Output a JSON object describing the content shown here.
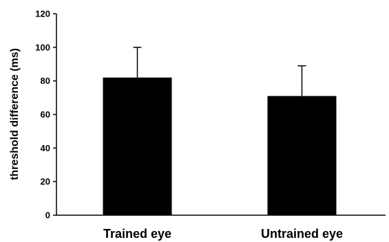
{
  "chart_data": {
    "type": "bar",
    "categories": [
      "Trained eye",
      "Untrained eye"
    ],
    "values": [
      82,
      71
    ],
    "errors": [
      18,
      18
    ],
    "title": "",
    "xlabel": "",
    "ylabel": "threshold difference (ms)",
    "ylim": [
      0,
      120
    ],
    "yticks": [
      0,
      20,
      40,
      60,
      80,
      100,
      120
    ],
    "grid": false,
    "legend": "none",
    "bar_color": "#000000"
  }
}
